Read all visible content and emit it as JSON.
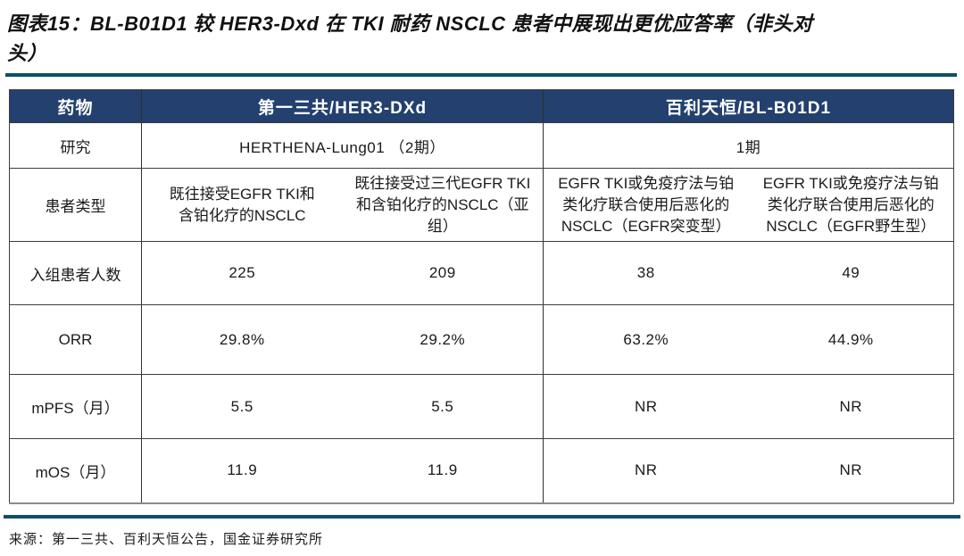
{
  "title": "图表15：BL-B01D1 较 HER3-Dxd 在 TKI 耐药 NSCLC 患者中展现出更优应答率（非头对\n头）",
  "source": "来源：第一三共、百利天恒公告，国金证券研究所",
  "colors": {
    "header_bg": "#23406e",
    "header_text": "#ffffff",
    "divider_rule": "#114e68",
    "grid_line": "#3d3d3d"
  },
  "table": {
    "col_label_header": "药物",
    "group_headers": [
      "第一三共/HER3-DXd",
      "百利天恒/BL-B01D1"
    ],
    "rows": {
      "study": {
        "label": "研究",
        "values": [
          "HERTHENA-Lung01 （2期）",
          "1期"
        ]
      },
      "patient_type": {
        "label": "患者类型",
        "values": [
          "既往接受EGFR TKI和\n含铂化疗的NSCLC",
          "既往接受过三代EGFR TKI\n和含铂化疗的NSCLC（亚组）",
          "EGFR TKI或免疫疗法与铂\n类化疗联合使用后恶化的\nNSCLC（EGFR突变型）",
          "EGFR TKI或免疫疗法与铂\n类化疗联合使用后恶化的\nNSCLC（EGFR野生型）"
        ]
      },
      "enrolled": {
        "label": "入组患者人数",
        "values": [
          "225",
          "209",
          "38",
          "49"
        ]
      },
      "orr": {
        "label": "ORR",
        "values": [
          "29.8%",
          "29.2%",
          "63.2%",
          "44.9%"
        ]
      },
      "mpfs": {
        "label": "mPFS（月）",
        "values": [
          "5.5",
          "5.5",
          "NR",
          "NR"
        ]
      },
      "mos": {
        "label": "mOS（月）",
        "values": [
          "11.9",
          "11.9",
          "NR",
          "NR"
        ]
      }
    }
  }
}
